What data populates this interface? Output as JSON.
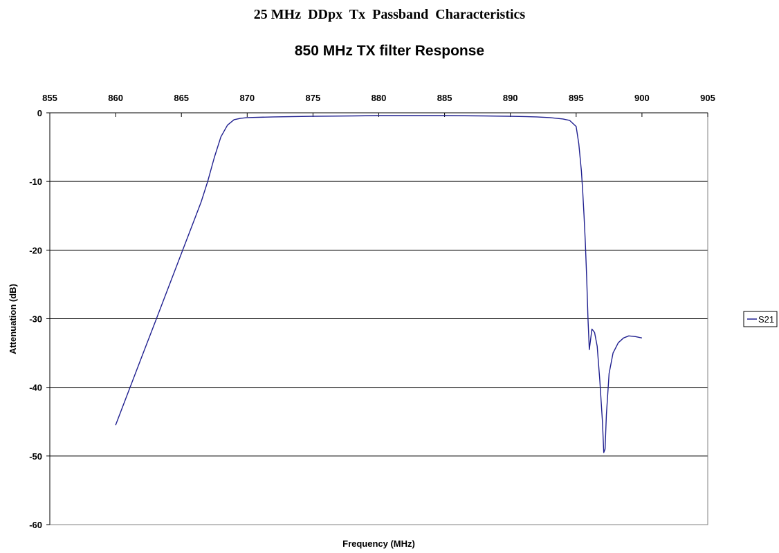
{
  "page": {
    "heading": "25 MHz  DDpx  Tx  Passband  Characteristics"
  },
  "chart_data": {
    "type": "line",
    "title": "850 MHz TX filter Response",
    "xlabel": "Frequency (MHz)",
    "ylabel": "Attenuation (dB)",
    "xlim": [
      855,
      905
    ],
    "ylim": [
      -60,
      0
    ],
    "x_ticks": [
      "855",
      "860",
      "865",
      "870",
      "875",
      "880",
      "885",
      "890",
      "895",
      "900",
      "905"
    ],
    "y_ticks": [
      "0",
      "-10",
      "-20",
      "-30",
      "-40",
      "-50",
      "-60"
    ],
    "x_axis_position": "top",
    "grid": "horizontal major gridlines",
    "legend_position": "right",
    "series_color": "#1f1f8f",
    "series": [
      {
        "name": "S21",
        "x": [
          860,
          861,
          862,
          863,
          864,
          865,
          866,
          866.5,
          867,
          867.5,
          868,
          868.5,
          869,
          869.5,
          870,
          872,
          875,
          878,
          880,
          882,
          885,
          888,
          890,
          892,
          893,
          894,
          894.5,
          895,
          895.2,
          895.4,
          895.5,
          895.6,
          895.7,
          895.8,
          895.9,
          896.0,
          896.1,
          896.2,
          896.4,
          896.6,
          896.8,
          897.0,
          897.1,
          897.2,
          897.3,
          897.5,
          897.8,
          898.2,
          898.6,
          899.0,
          899.5,
          900
        ],
        "y": [
          -45.5,
          -40.5,
          -35.5,
          -30.5,
          -25.5,
          -20.5,
          -15.5,
          -13.0,
          -10.0,
          -6.5,
          -3.5,
          -1.8,
          -1.0,
          -0.8,
          -0.7,
          -0.6,
          -0.5,
          -0.45,
          -0.4,
          -0.4,
          -0.4,
          -0.45,
          -0.5,
          -0.6,
          -0.7,
          -0.9,
          -1.1,
          -2.0,
          -4.5,
          -8.5,
          -11.5,
          -15.0,
          -19.0,
          -24.0,
          -30.0,
          -34.5,
          -33.0,
          -31.5,
          -32.0,
          -34.0,
          -39.0,
          -45.0,
          -49.5,
          -49.0,
          -44.0,
          -38.0,
          -35.0,
          -33.5,
          -32.8,
          -32.5,
          -32.6,
          -32.8
        ]
      }
    ]
  }
}
